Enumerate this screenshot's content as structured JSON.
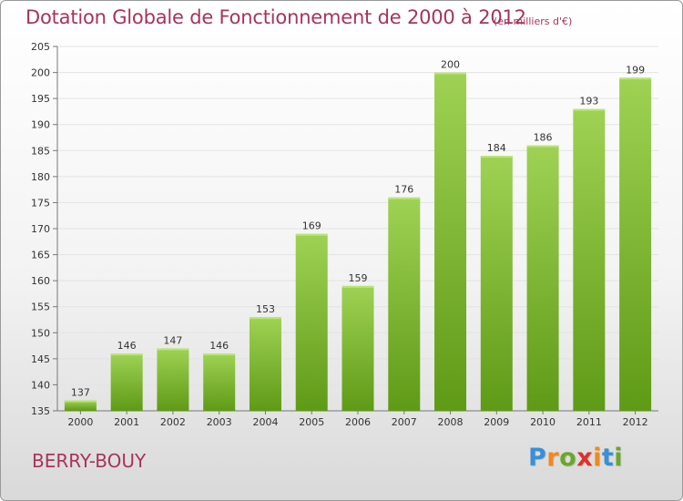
{
  "title": "Dotation Globale de Fonctionnement de 2000 à 2012",
  "unit_note": "(en milliers d'€)",
  "commune": "BERRY-BOUY",
  "logo": {
    "text": "Proxiti",
    "colors": [
      "#3a8fd6",
      "#f08a1c",
      "#6aa829",
      "#e0302a",
      "#f08a1c",
      "#3a8fd6",
      "#6aa829"
    ]
  },
  "colors": {
    "title": "#a8345a",
    "bar_top": "#9fd254",
    "bar_bottom": "#5f9a16",
    "grid": "#e3e3e3",
    "axis_text": "#333333"
  },
  "chart_data": {
    "type": "bar",
    "categories": [
      "2000",
      "2001",
      "2002",
      "2003",
      "2004",
      "2005",
      "2006",
      "2007",
      "2008",
      "2009",
      "2010",
      "2011",
      "2012"
    ],
    "values": [
      137,
      146,
      147,
      146,
      153,
      169,
      159,
      176,
      200,
      184,
      186,
      193,
      199
    ],
    "data_labels": [
      "137",
      "146",
      "147",
      "146",
      "153",
      "169",
      "159",
      "176",
      "200",
      "184",
      "186",
      "193",
      "199"
    ],
    "ylim": [
      135,
      205
    ],
    "yticks": [
      135,
      140,
      145,
      150,
      155,
      160,
      165,
      170,
      175,
      180,
      185,
      190,
      195,
      200,
      205
    ],
    "ytick_labels": [
      "135",
      "140",
      "145",
      "150",
      "155",
      "160",
      "165",
      "170",
      "175",
      "180",
      "185",
      "190",
      "195",
      "200",
      "205"
    ],
    "grid": true,
    "legend": "none"
  }
}
